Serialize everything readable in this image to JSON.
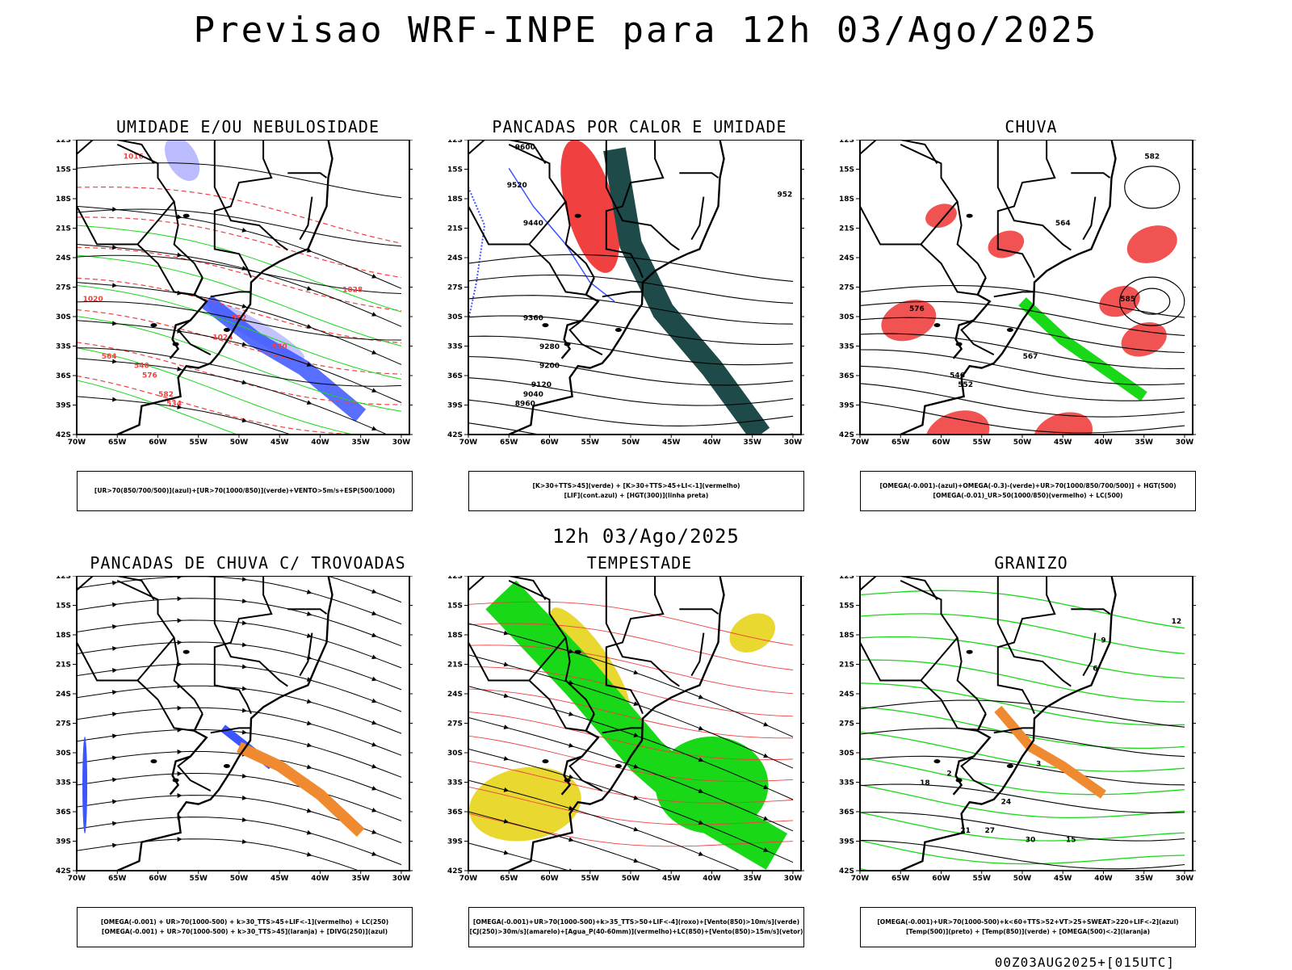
{
  "title": "Previsao WRF-INPE  para 12h 03/Ago/2025",
  "middle_label": "12h 03/Ago/2025",
  "footer": "00Z03AUG2025+[015UTC]",
  "axes": {
    "lat_labels": [
      "12S",
      "15S",
      "18S",
      "21S",
      "24S",
      "27S",
      "30S",
      "33S",
      "36S",
      "39S",
      "42S"
    ],
    "lon_labels": [
      "70W",
      "65W",
      "60W",
      "55W",
      "50W",
      "45W",
      "40W",
      "35W",
      "30W"
    ]
  },
  "colors": {
    "blue": "#3b55ff",
    "lightblue": "#b4b4ff",
    "green": "#18d818",
    "red": "#f04040",
    "darkteal": "#1f4a4a",
    "yellow": "#e8d830",
    "orange": "#f08a30",
    "black": "#000000"
  },
  "panels": [
    {
      "id": "umidade",
      "title": "UMIDADE E/OU NEBULOSIDADE",
      "legend": [
        "[UR>70(850/700/500)](azul)+[UR>70(1000/850)](verde)+VENTO>5m/s+ESP(500/1000)"
      ],
      "contour_labels": [
        "1016",
        "1020",
        "1024",
        "1028",
        "552",
        "564",
        "570",
        "576",
        "582",
        "540",
        "534"
      ]
    },
    {
      "id": "pancadas-calor",
      "title": "PANCADAS POR CALOR E UMIDADE",
      "legend": [
        "[K>30+TTS>45](verde) + [K>30+TTS>45+LI<-1](vermelho)",
        "[LIF](cont.azul) + [HGT(300)](linha preta)"
      ],
      "contour_labels": [
        "9600",
        "9520",
        "9440",
        "9360",
        "9280",
        "9200",
        "9120",
        "9040",
        "8960",
        "952"
      ]
    },
    {
      "id": "chuva",
      "title": "CHUVA",
      "legend": [
        "[OMEGA(-0.001)-(azul)+OMEGA(-0.3)-(verde)+UR>70(1000/850/700/500)] + HGT(500)",
        "[OMEGA(-0.01)_UR>50(1000/850)(vermelho) + LC(500)"
      ],
      "contour_labels": [
        "582",
        "585",
        "576",
        "567",
        "552",
        "546",
        "564"
      ]
    },
    {
      "id": "trovoadas",
      "title": "PANCADAS DE CHUVA C/ TROVOADAS",
      "legend": [
        "[OMEGA(-0.001) + UR>70(1000-500) + k>30_TTS>45+LIF<-1](vermelho) + LC(250)",
        "[OMEGA(-0.001) + UR>70(1000-500) + k>30_TTS>45](laranja) + [DIVG(250)](azul)"
      ],
      "contour_labels": []
    },
    {
      "id": "tempestade",
      "title": "TEMPESTADE",
      "legend": [
        "[OMEGA(-0.001)+UR>70(1000-500)+k>35_TTS>50+LIF<-4](roxo)+[Vento(850)>10m/s](verde)",
        "[CJ(250)>30m/s](amarelo)+[Agua_P(40-60mm)](vermelho)+LC(850)+[Vento(850)>15m/s](vetor)"
      ],
      "contour_labels": []
    },
    {
      "id": "granizo",
      "title": "GRANIZO",
      "legend": [
        "[OMEGA(-0.001)+UR>70(1000-500)+k<60+TTS>52+VT>25+SWEAT>220+LIF<-2](azul)",
        "[Temp(500)](preto) + [Temp(850)](verde) + [OMEGA(500)<-2](laranja)"
      ],
      "contour_labels": [
        "12",
        "9",
        "6",
        "3",
        "2",
        "18",
        "21",
        "24",
        "27",
        "30",
        "15"
      ]
    }
  ]
}
